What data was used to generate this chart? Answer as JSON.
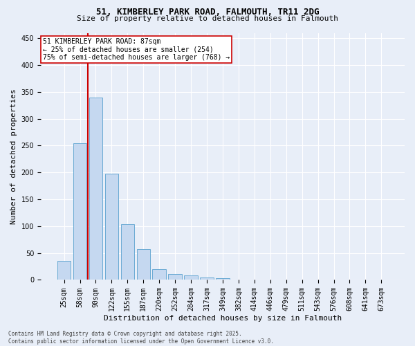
{
  "title_line1": "51, KIMBERLEY PARK ROAD, FALMOUTH, TR11 2DG",
  "title_line2": "Size of property relative to detached houses in Falmouth",
  "xlabel": "Distribution of detached houses by size in Falmouth",
  "ylabel": "Number of detached properties",
  "categories": [
    "25sqm",
    "58sqm",
    "90sqm",
    "122sqm",
    "155sqm",
    "187sqm",
    "220sqm",
    "252sqm",
    "284sqm",
    "317sqm",
    "349sqm",
    "382sqm",
    "414sqm",
    "446sqm",
    "479sqm",
    "511sqm",
    "543sqm",
    "576sqm",
    "608sqm",
    "641sqm",
    "673sqm"
  ],
  "values": [
    35,
    255,
    340,
    198,
    104,
    57,
    20,
    11,
    8,
    5,
    3,
    1,
    0,
    0,
    0,
    0,
    0,
    0,
    0,
    0,
    1
  ],
  "bar_color": "#c5d8f0",
  "bar_edge_color": "#6aaad4",
  "property_line_color": "#cc0000",
  "property_line_x": 1.5,
  "property_line_label": "51 KIMBERLEY PARK ROAD: 87sqm",
  "annotation_line2": "← 25% of detached houses are smaller (254)",
  "annotation_line3": "75% of semi-detached houses are larger (768) →",
  "annotation_box_facecolor": "#ffffff",
  "annotation_box_edgecolor": "#cc0000",
  "ylim": [
    0,
    460
  ],
  "yticks": [
    0,
    50,
    100,
    150,
    200,
    250,
    300,
    350,
    400,
    450
  ],
  "background_color": "#e8eef8",
  "grid_color": "#ffffff",
  "title_fontsize": 9,
  "subtitle_fontsize": 8,
  "ylabel_fontsize": 8,
  "xlabel_fontsize": 8,
  "tick_fontsize": 7,
  "annot_fontsize": 7,
  "footer_fontsize": 5.5,
  "footer_line1": "Contains HM Land Registry data © Crown copyright and database right 2025.",
  "footer_line2": "Contains public sector information licensed under the Open Government Licence v3.0."
}
